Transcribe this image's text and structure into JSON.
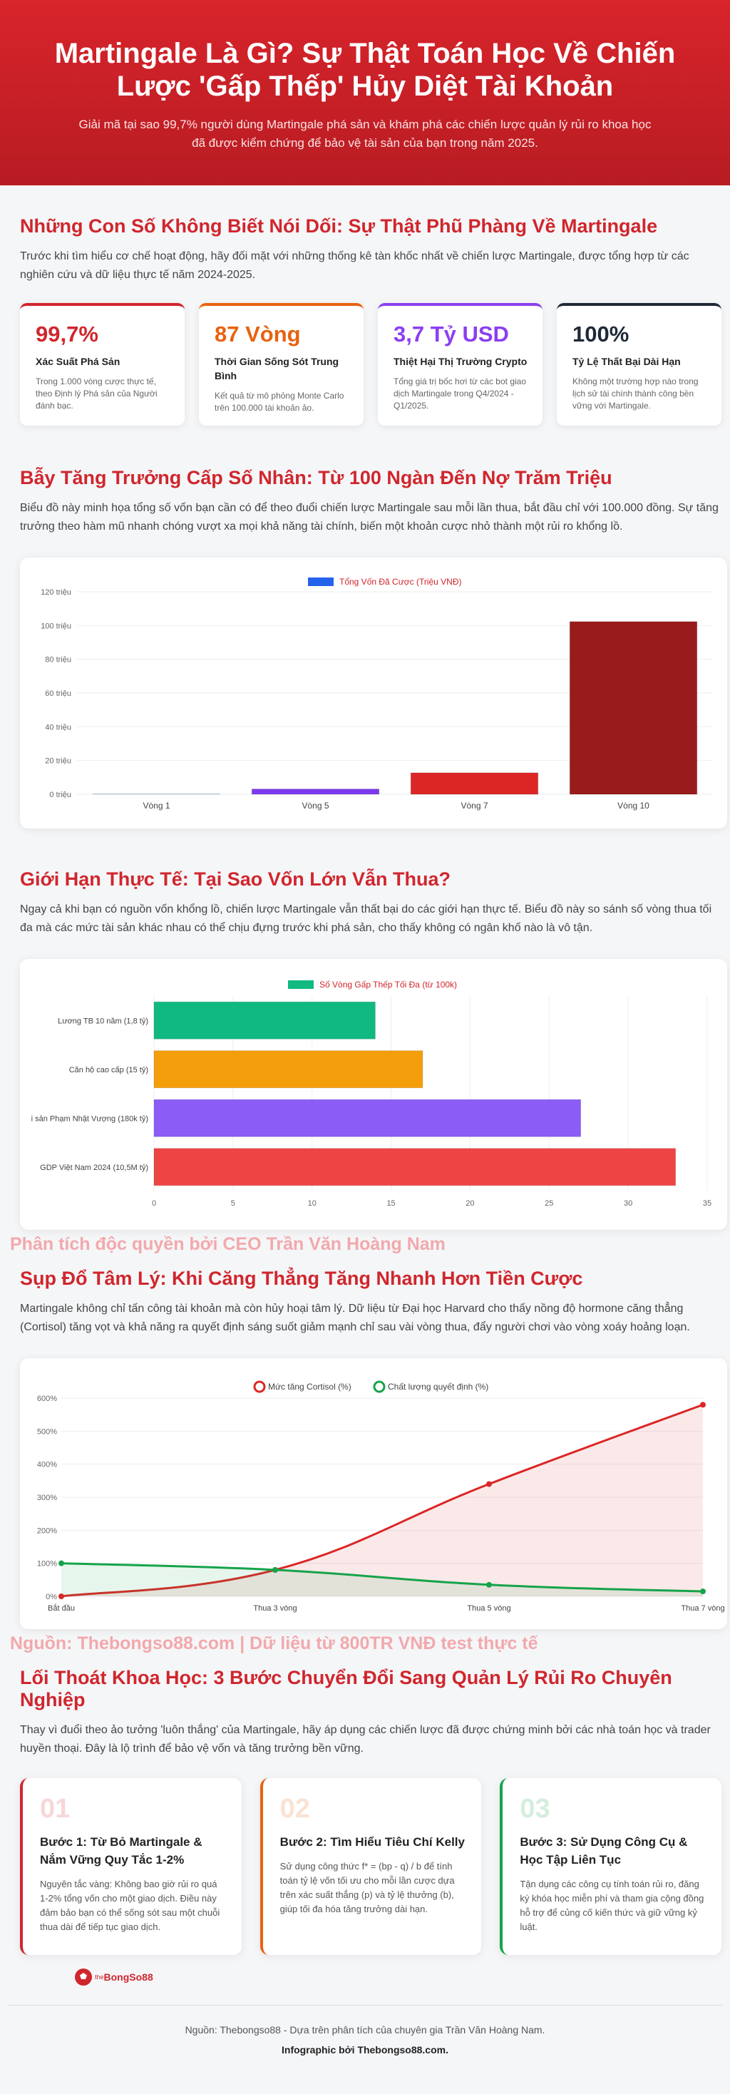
{
  "hero": {
    "title": "Martingale Là Gì? Sự Thật Toán Học Về Chiến Lược 'Gấp Thếp' Hủy Diệt Tài Khoản",
    "subtitle": "Giải mã tại sao 99,7% người dùng Martingale phá sản và khám phá các chiến lược quản lý rủi ro khoa học đã được kiểm chứng để bảo vệ tài sản của bạn trong năm 2025."
  },
  "section1": {
    "heading": "Những Con Số Không Biết Nói Dối: Sự Thật Phũ Phàng Về Martingale",
    "lead": "Trước khi tìm hiểu cơ chế hoạt động, hãy đối mặt với những thống kê tàn khốc nhất về chiến lược Martingale, được tổng hợp từ các nghiên cứu và dữ liệu thực tế năm 2024-2025.",
    "stats": [
      {
        "value": "99,7%",
        "label": "Xác Suất Phá Sản",
        "desc": "Trong 1.000 vòng cược thực tế, theo Định lý Phá sản của Người đánh bạc.",
        "color": "#d0262d"
      },
      {
        "value": "87 Vòng",
        "label": "Thời Gian Sống Sót Trung Bình",
        "desc": "Kết quả từ mô phỏng Monte Carlo trên 100.000 tài khoản ảo.",
        "color": "#e8620f"
      },
      {
        "value": "3,7 Tỷ USD",
        "label": "Thiệt Hại Thị Trường Crypto",
        "desc": "Tổng giá trị bốc hơi từ các bot giao dịch Martingale trong Q4/2024 - Q1/2025.",
        "color": "#8b3ff0"
      },
      {
        "value": "100%",
        "label": "Tỷ Lệ Thất Bại Dài Hạn",
        "desc": "Không một trường hợp nào trong lịch sử tài chính thành công bền vững với Martingale.",
        "color": "#1f2937"
      }
    ]
  },
  "section2": {
    "heading": "Bẫy Tăng Trưởng Cấp Số Nhân: Từ 100 Ngàn Đến Nợ Trăm Triệu",
    "lead": "Biểu đồ này minh họa tổng số vốn bạn cần có để theo đuổi chiến lược Martingale sau mỗi lần thua, bắt đầu chỉ với 100.000 đồng. Sự tăng trưởng theo hàm mũ nhanh chóng vượt xa mọi khả năng tài chính, biến một khoản cược nhỏ thành một rủi ro khổng lồ."
  },
  "section3": {
    "heading": "Giới Hạn Thực Tế: Tại Sao Vốn Lớn Vẫn Thua?",
    "lead": "Ngay cả khi bạn có nguồn vốn khổng lồ, chiến lược Martingale vẫn thất bại do các giới hạn thực tế. Biểu đồ này so sánh số vòng thua tối đa mà các mức tài sản khác nhau có thể chịu đựng trước khi phá sản, cho thấy không có ngân khố nào là vô tận."
  },
  "watermark1": "Phân tích độc quyền bởi CEO Trần Văn Hoàng Nam",
  "section4": {
    "heading": "Sụp Đổ Tâm Lý: Khi Căng Thẳng Tăng Nhanh Hơn Tiền Cược",
    "lead": "Martingale không chỉ tấn công tài khoản mà còn hủy hoại tâm lý. Dữ liệu từ Đại học Harvard cho thấy nồng độ hormone căng thẳng (Cortisol) tăng vọt và khả năng ra quyết định sáng suốt giảm mạnh chỉ sau vài vòng thua, đẩy người chơi vào vòng xoáy hoảng loạn."
  },
  "watermark2": "Nguồn: Thebongso88.com | Dữ liệu từ 800TR VNĐ test thực tế",
  "section5": {
    "heading": "Lối Thoát Khoa Học: 3 Bước Chuyển Đổi Sang Quản Lý Rủi Ro Chuyên Nghiệp",
    "lead": "Thay vì đuổi theo ảo tưởng 'luôn thắng' của Martingale, hãy áp dụng các chiến lược đã được chứng minh bởi các nhà toán học và trader huyền thoại. Đây là lộ trình để bảo vệ vốn và tăng trưởng bền vững.",
    "steps": [
      {
        "num": "01",
        "title": "Bước 1: Từ Bỏ Martingale & Nắm Vững Quy Tắc 1-2%",
        "desc": "Nguyên tắc vàng: Không bao giờ rủi ro quá 1-2% tổng vốn cho một giao dịch. Điều này đảm bảo bạn có thể sống sót sau một chuỗi thua dài để tiếp tục giao dịch.",
        "color": "#d0262d"
      },
      {
        "num": "02",
        "title": "Bước 2: Tìm Hiểu Tiêu Chí Kelly",
        "desc": "Sử dụng công thức f* = (bp - q) / b để tính toán tỷ lệ vốn tối ưu cho mỗi lần cược dựa trên xác suất thắng (p) và tỷ lệ thưởng (b), giúp tối đa hóa tăng trưởng dài hạn.",
        "color": "#e8620f"
      },
      {
        "num": "03",
        "title": "Bước 3: Sử Dụng Công Cụ & Học Tập Liên Tục",
        "desc": "Tận dụng các công cụ tính toán rủi ro, đăng ký khóa học miễn phí và tham gia cộng đồng hỗ trợ để củng cố kiến thức và giữ vững kỷ luật.",
        "color": "#16a34a"
      }
    ]
  },
  "logo": {
    "text_pre": "the",
    "text_main": "BongSo88"
  },
  "footer": {
    "source": "Nguồn: Thebongso88 - Dựa trên phân tích của chuyên gia Trần Văn Hoàng Nam.",
    "credit": "Infographic bởi Thebongso88.com."
  },
  "chart_data": [
    {
      "type": "bar",
      "categories": [
        "Vòng 1",
        "Vòng 5",
        "Vòng 7",
        "Vòng 10"
      ],
      "series": [
        {
          "name": "Tổng Vốn Đã Cược (Triệu VNĐ)",
          "values": [
            0.1,
            3.1,
            12.7,
            102.3
          ]
        }
      ],
      "colors": [
        "#2563eb",
        "#7c3aed",
        "#dc2626",
        "#991b1b"
      ],
      "legend_color": "#2563eb",
      "yticks": [
        "0 triệu",
        "20 triệu",
        "40 triệu",
        "60 triệu",
        "80 triệu",
        "100 triệu",
        "120 triệu"
      ],
      "ylim": [
        0,
        120
      ],
      "legend": "top"
    },
    {
      "type": "bar",
      "orientation": "horizontal",
      "categories": [
        "Lương TB 10 năm (1,8 tỷ)",
        "Căn hộ cao cấp (15 tỷ)",
        "i sản Phạm Nhật Vượng (180k tỷ)",
        "GDP Việt Nam 2024 (10,5M tỷ)"
      ],
      "series": [
        {
          "name": "Số Vòng Gấp Thếp Tối Đa (từ 100k)",
          "values": [
            14,
            17,
            27,
            33
          ]
        }
      ],
      "colors": [
        "#10b981",
        "#f59e0b",
        "#8b5cf6",
        "#ef4444"
      ],
      "legend_color": "#10b981",
      "xticks": [
        "0",
        "5",
        "10",
        "15",
        "20",
        "25",
        "30",
        "35"
      ],
      "xlim": [
        0,
        35
      ],
      "legend": "top"
    },
    {
      "type": "line",
      "categories": [
        "Bắt đầu",
        "Thua 3 vòng",
        "Thua 5 vòng",
        "Thua 7 vòng"
      ],
      "series": [
        {
          "name": "Mức tăng Cortisol (%)",
          "values": [
            0,
            80,
            340,
            580
          ],
          "color": "#dc2626"
        },
        {
          "name": "Chất lượng quyết định (%)",
          "values": [
            100,
            80,
            35,
            15
          ],
          "color": "#16a34a"
        }
      ],
      "yticks": [
        "0%",
        "100%",
        "200%",
        "300%",
        "400%",
        "500%",
        "600%"
      ],
      "ylim": [
        0,
        600
      ],
      "legend": "top"
    }
  ]
}
